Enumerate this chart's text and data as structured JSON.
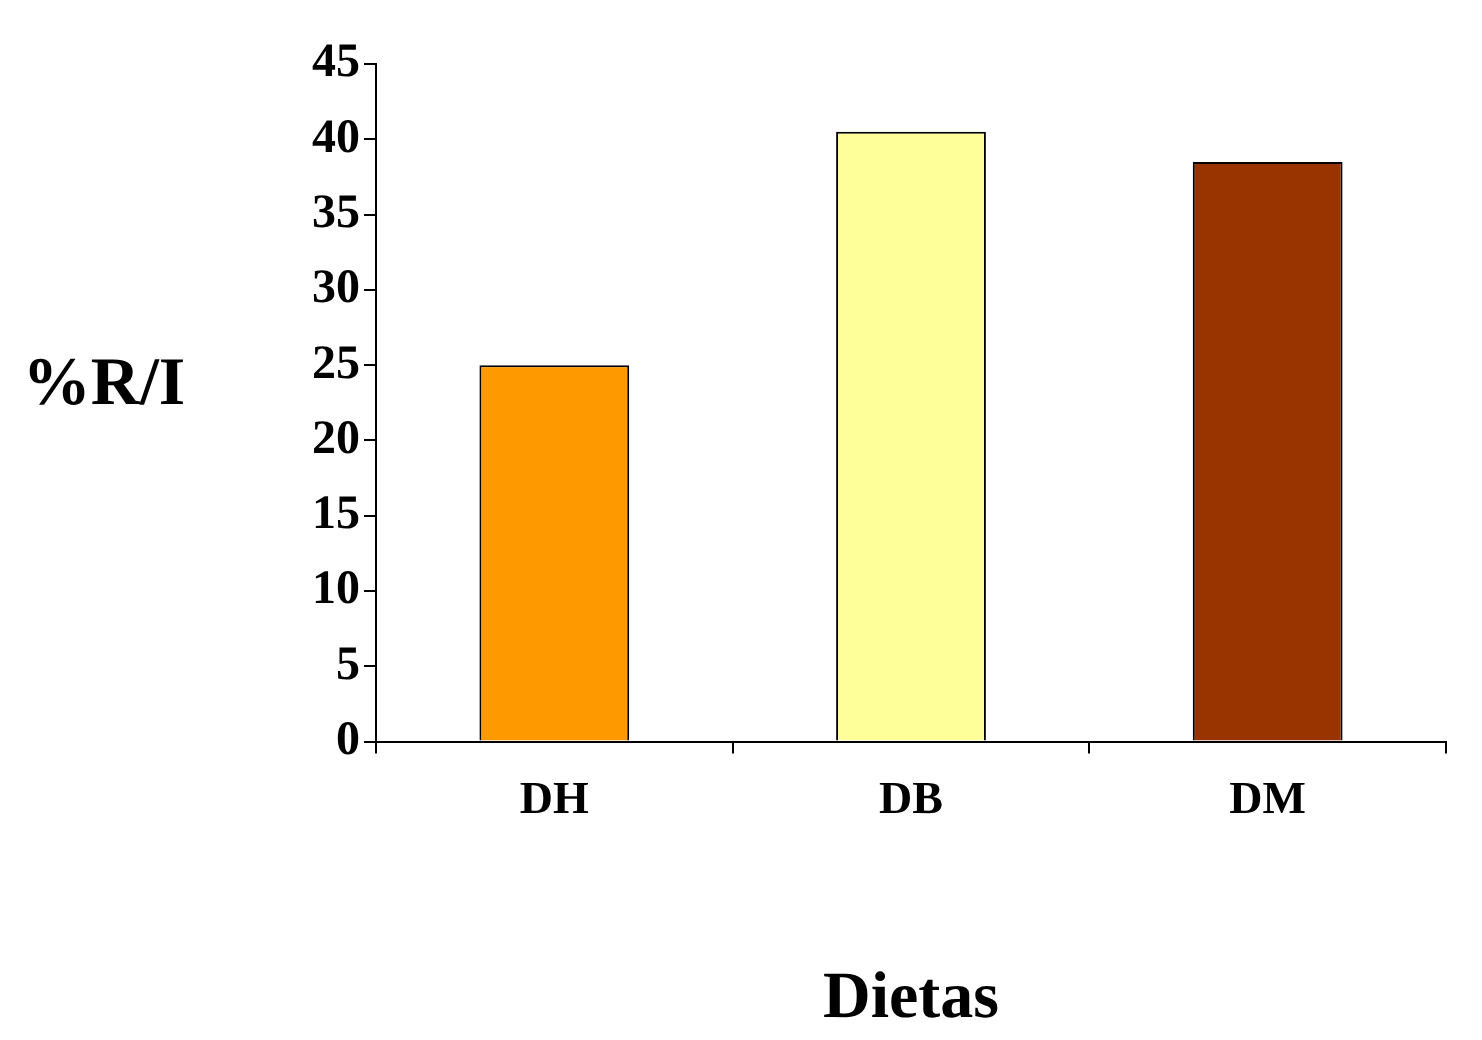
{
  "chart_data": {
    "type": "bar",
    "xlabel": "Dietas",
    "ylabel": "%R/I",
    "categories": [
      "DH",
      "DB",
      "DM"
    ],
    "values": [
      25,
      40.5,
      38.5
    ],
    "colors": [
      "#ff9900",
      "#ffff99",
      "#993300"
    ],
    "ylim": [
      0,
      45
    ],
    "yticks": [
      0,
      5,
      10,
      15,
      20,
      25,
      30,
      35,
      40,
      45
    ]
  }
}
